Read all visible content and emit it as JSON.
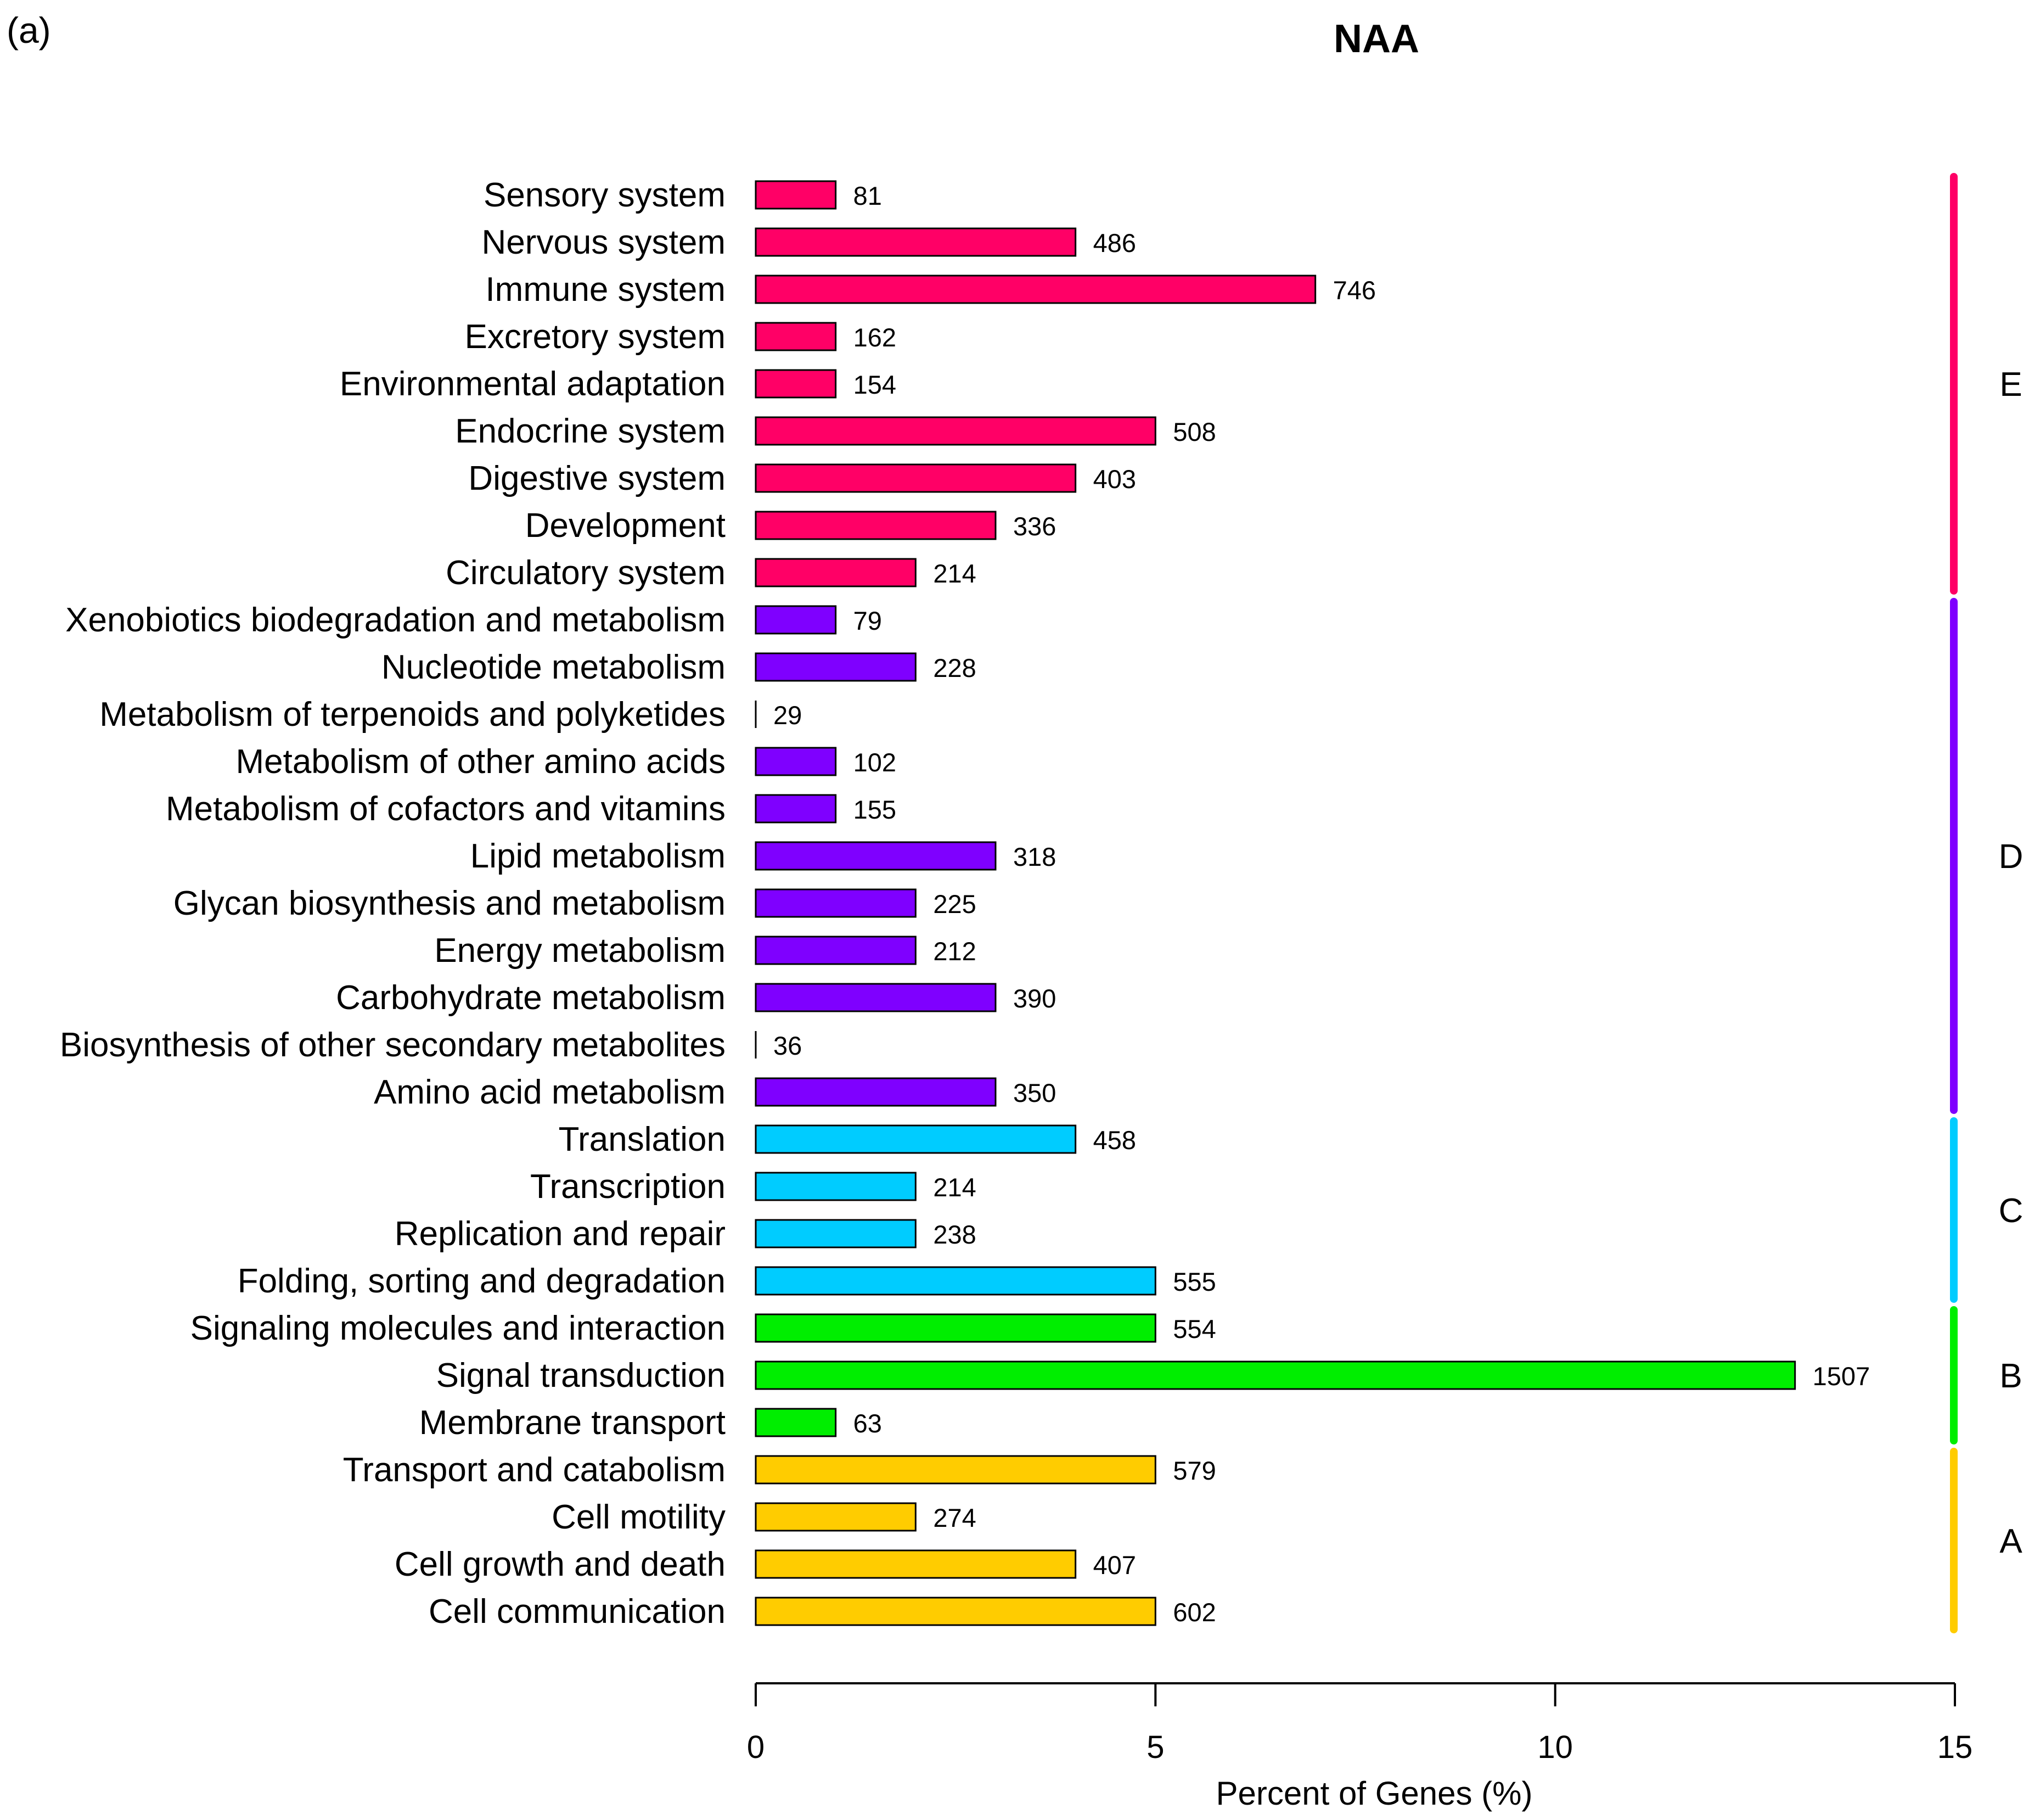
{
  "panel_label": "(a)",
  "chart_data": {
    "type": "bar",
    "orientation": "horizontal",
    "title": "NAA",
    "xlabel": "Percent of Genes (%)",
    "ylabel": "",
    "xlim": [
      0,
      15
    ],
    "xticks": [
      0,
      5,
      10,
      15
    ],
    "x_tick_labels": [
      "0",
      "5",
      "10",
      "15"
    ],
    "grid": false,
    "categories": [
      "Sensory system",
      "Nervous system",
      "Immune system",
      "Excretory system",
      "Environmental adaptation",
      "Endocrine system",
      "Digestive system",
      "Development",
      "Circulatory system",
      "Xenobiotics biodegradation and metabolism",
      "Nucleotide metabolism",
      "Metabolism of terpenoids and polyketides",
      "Metabolism of other amino acids",
      "Metabolism of cofactors and vitamins",
      "Lipid metabolism",
      "Glycan biosynthesis and metabolism",
      "Energy metabolism",
      "Carbohydrate metabolism",
      "Biosynthesis of other secondary metabolites",
      "Amino acid metabolism",
      "Translation",
      "Transcription",
      "Replication and repair",
      "Folding, sorting and degradation",
      "Signaling molecules and interaction",
      "Signal transduction",
      "Membrane transport",
      "Transport and catabolism",
      "Cell motility",
      "Cell growth and death",
      "Cell communication"
    ],
    "percent_values": [
      1,
      4,
      7,
      1,
      1,
      5,
      4,
      3,
      2,
      1,
      2,
      0,
      1,
      1,
      3,
      2,
      2,
      3,
      0,
      3,
      4,
      2,
      2,
      5,
      5,
      13,
      1,
      5,
      2,
      4,
      5
    ],
    "gene_counts": [
      "81",
      "486",
      "746",
      "162",
      "154",
      "508",
      "403",
      "336",
      "214",
      "79",
      "228",
      "29",
      "102",
      "155",
      "318",
      "225",
      "212",
      "390",
      "36",
      "350",
      "458",
      "214",
      "238",
      "555",
      "554",
      "1507",
      "63",
      "579",
      "274",
      "407",
      "602"
    ],
    "bar_groups": [
      "E",
      "E",
      "E",
      "E",
      "E",
      "E",
      "E",
      "E",
      "E",
      "D",
      "D",
      "D",
      "D",
      "D",
      "D",
      "D",
      "D",
      "D",
      "D",
      "D",
      "C",
      "C",
      "C",
      "C",
      "B",
      "B",
      "B",
      "A",
      "A",
      "A",
      "A"
    ],
    "groups": [
      {
        "name": "E",
        "color": "#ff0066"
      },
      {
        "name": "D",
        "color": "#7f00ff"
      },
      {
        "name": "C",
        "color": "#00ccff"
      },
      {
        "name": "B",
        "color": "#00ee00"
      },
      {
        "name": "A",
        "color": "#ffcc00"
      }
    ]
  }
}
